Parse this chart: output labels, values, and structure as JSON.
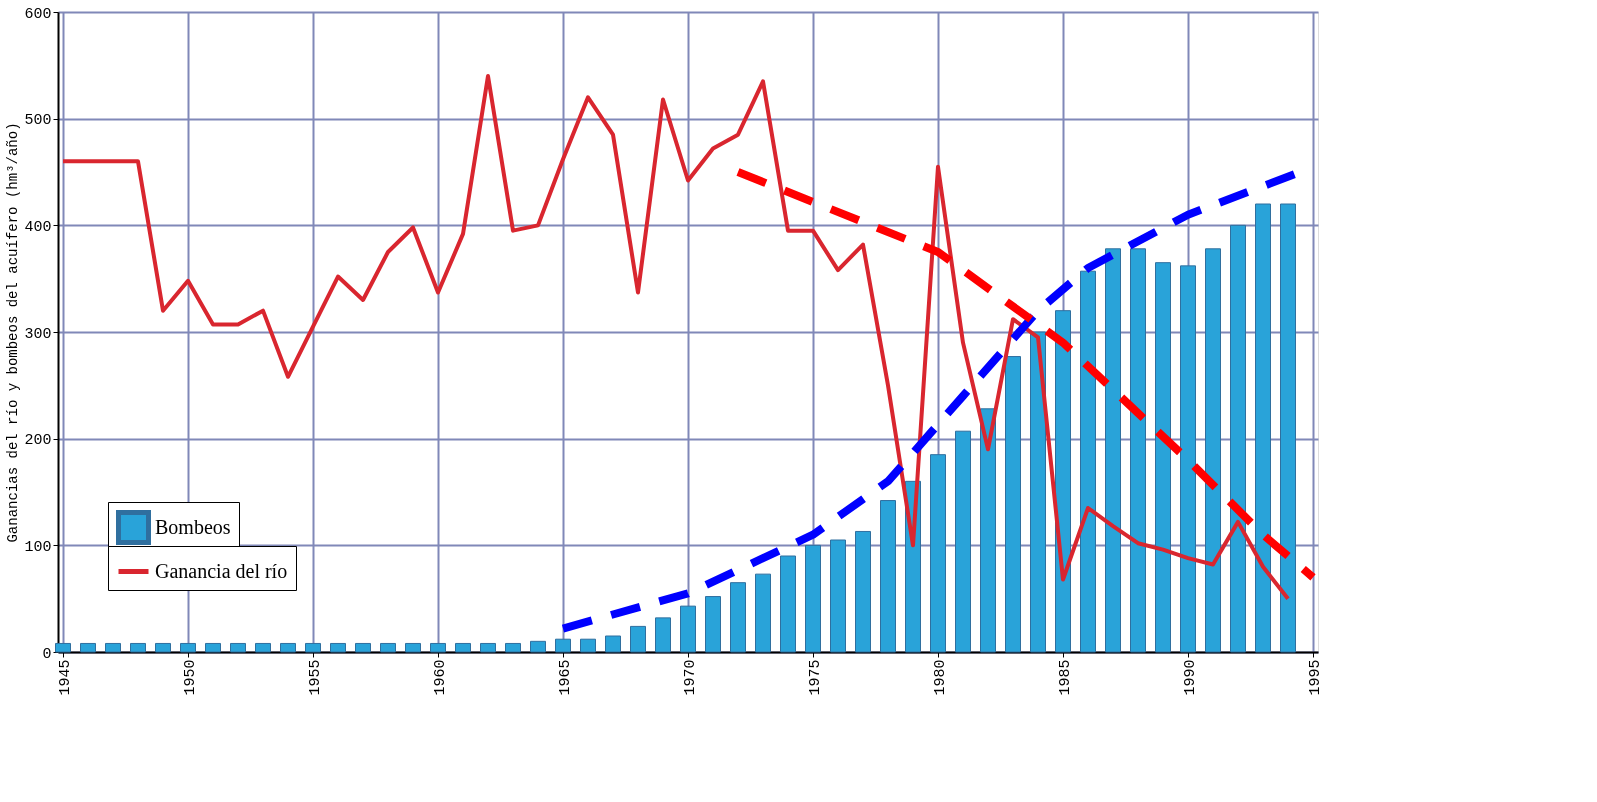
{
  "chart_data": {
    "type": "bar",
    "ylabel": "Ganancias del río y bombeos del acuífero (hm³/año)",
    "x": [
      1945,
      1946,
      1947,
      1948,
      1949,
      1950,
      1951,
      1952,
      1953,
      1954,
      1955,
      1956,
      1957,
      1958,
      1959,
      1960,
      1961,
      1962,
      1963,
      1964,
      1965,
      1966,
      1967,
      1968,
      1969,
      1970,
      1971,
      1972,
      1973,
      1974,
      1975,
      1976,
      1977,
      1978,
      1979,
      1980,
      1981,
      1982,
      1983,
      1984,
      1985,
      1986,
      1987,
      1988,
      1989,
      1990,
      1991,
      1992,
      1993,
      1994
    ],
    "series": [
      {
        "name": "Bombeos",
        "color": "#29a3d9",
        "values": [
          8,
          8,
          8,
          8,
          8,
          8,
          8,
          8,
          8,
          8,
          8,
          8,
          8,
          8,
          8,
          8,
          8,
          8,
          8,
          10,
          12,
          12,
          15,
          24,
          32,
          43,
          52,
          65,
          73,
          90,
          100,
          105,
          113,
          142,
          160,
          185,
          207,
          228,
          277,
          300,
          320,
          357,
          378,
          378,
          365,
          362,
          378,
          400,
          420,
          420
        ]
      },
      {
        "name": "Ganancia del río",
        "type": "line",
        "color": "#d9262f",
        "values": [
          460,
          460,
          460,
          460,
          320,
          348,
          307,
          307,
          320,
          258,
          305,
          352,
          330,
          375,
          398,
          337,
          392,
          540,
          395,
          400,
          462,
          520,
          485,
          337,
          518,
          442,
          472,
          485,
          535,
          395,
          395,
          358,
          382,
          250,
          100,
          455,
          290,
          190,
          312,
          295,
          68,
          135,
          118,
          102,
          96,
          88,
          82,
          122,
          80,
          50
        ]
      },
      {
        "type": "line",
        "color": "#0000ff",
        "line_style": "dashed",
        "x": [
          1965,
          1970,
          1975,
          1978,
          1981,
          1984,
          1986,
          1990,
          1994.5
        ],
        "values": [
          22,
          55,
          110,
          160,
          240,
          320,
          360,
          410,
          450
        ]
      },
      {
        "type": "line",
        "color": "#ff0000",
        "line_style": "dashed",
        "x": [
          1972,
          1980,
          1985,
          1990,
          1993,
          1995
        ],
        "values": [
          450,
          375,
          290,
          180,
          110,
          70
        ]
      }
    ],
    "xlim": [
      1945,
      1995
    ],
    "xticks": [
      1945,
      1950,
      1955,
      1960,
      1965,
      1970,
      1975,
      1980,
      1985,
      1990,
      1995
    ],
    "ylim": [
      0,
      600
    ],
    "yticks": [
      0,
      100,
      200,
      300,
      400,
      500,
      600
    ],
    "grid": true,
    "legend": "bottom left"
  }
}
